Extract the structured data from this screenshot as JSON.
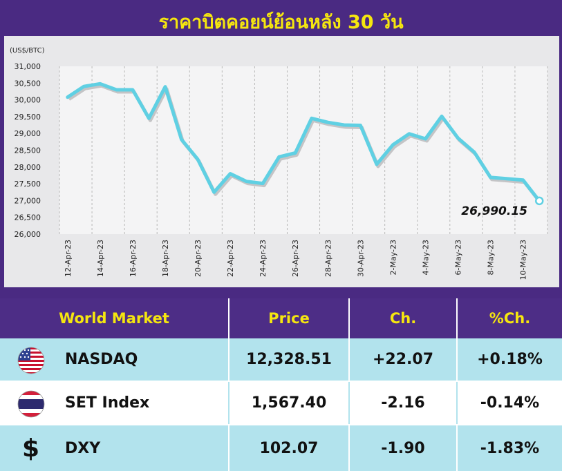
{
  "header": {
    "title": "ราคาบิตคอยน์ย้อนหลัง 30 วัน"
  },
  "chart_data": {
    "type": "line",
    "unit_label": "(US$/BTC)",
    "y_ticks": [
      "31,000",
      "30,500",
      "30,000",
      "29,500",
      "29,000",
      "28,500",
      "28,000",
      "27,500",
      "27,000",
      "26,500",
      "26,000"
    ],
    "ylim": [
      26000,
      31000
    ],
    "x_tick_labels": [
      "12-Apr-23",
      "14-Apr-23",
      "16-Apr-23",
      "18-Apr-23",
      "20-Apr-23",
      "22-Apr-23",
      "24-Apr-23",
      "26-Apr-23",
      "28-Apr-23",
      "30-Apr-23",
      "2-May-23",
      "4-May-23",
      "6-May-23",
      "8-May-23",
      "10-May-23"
    ],
    "x": [
      "12-Apr-23",
      "13-Apr-23",
      "14-Apr-23",
      "15-Apr-23",
      "16-Apr-23",
      "17-Apr-23",
      "18-Apr-23",
      "19-Apr-23",
      "20-Apr-23",
      "21-Apr-23",
      "22-Apr-23",
      "23-Apr-23",
      "24-Apr-23",
      "25-Apr-23",
      "26-Apr-23",
      "27-Apr-23",
      "28-Apr-23",
      "29-Apr-23",
      "30-Apr-23",
      "1-May-23",
      "2-May-23",
      "3-May-23",
      "4-May-23",
      "5-May-23",
      "6-May-23",
      "7-May-23",
      "8-May-23",
      "9-May-23",
      "10-May-23",
      "11-May-23"
    ],
    "values": [
      30080,
      30400,
      30480,
      30300,
      30300,
      29450,
      30390,
      28820,
      28230,
      27250,
      27800,
      27570,
      27510,
      28300,
      28420,
      29450,
      29330,
      29250,
      29240,
      28080,
      28660,
      28990,
      28840,
      29510,
      28860,
      28440,
      27690,
      27650,
      27610,
      26990.15
    ],
    "last_value_label": "26,990.15",
    "grid": true,
    "line_color": "#5fd0e3"
  },
  "table": {
    "headers": {
      "name": "World Market",
      "price": "Price",
      "ch": "Ch.",
      "pct": "%Ch."
    },
    "rows": [
      {
        "name": "NASDAQ",
        "icon": "us-flag-icon",
        "price": "12,328.51",
        "ch": "+22.07",
        "pct": "+0.18%"
      },
      {
        "name": "SET Index",
        "icon": "thai-flag-icon",
        "price": "1,567.40",
        "ch": "-2.16",
        "pct": "-0.14%"
      },
      {
        "name": "DXY",
        "icon": "dollar-icon",
        "icon_glyph": "$",
        "price": "102.07",
        "ch": "-1.90",
        "pct": "-1.83%"
      }
    ]
  }
}
